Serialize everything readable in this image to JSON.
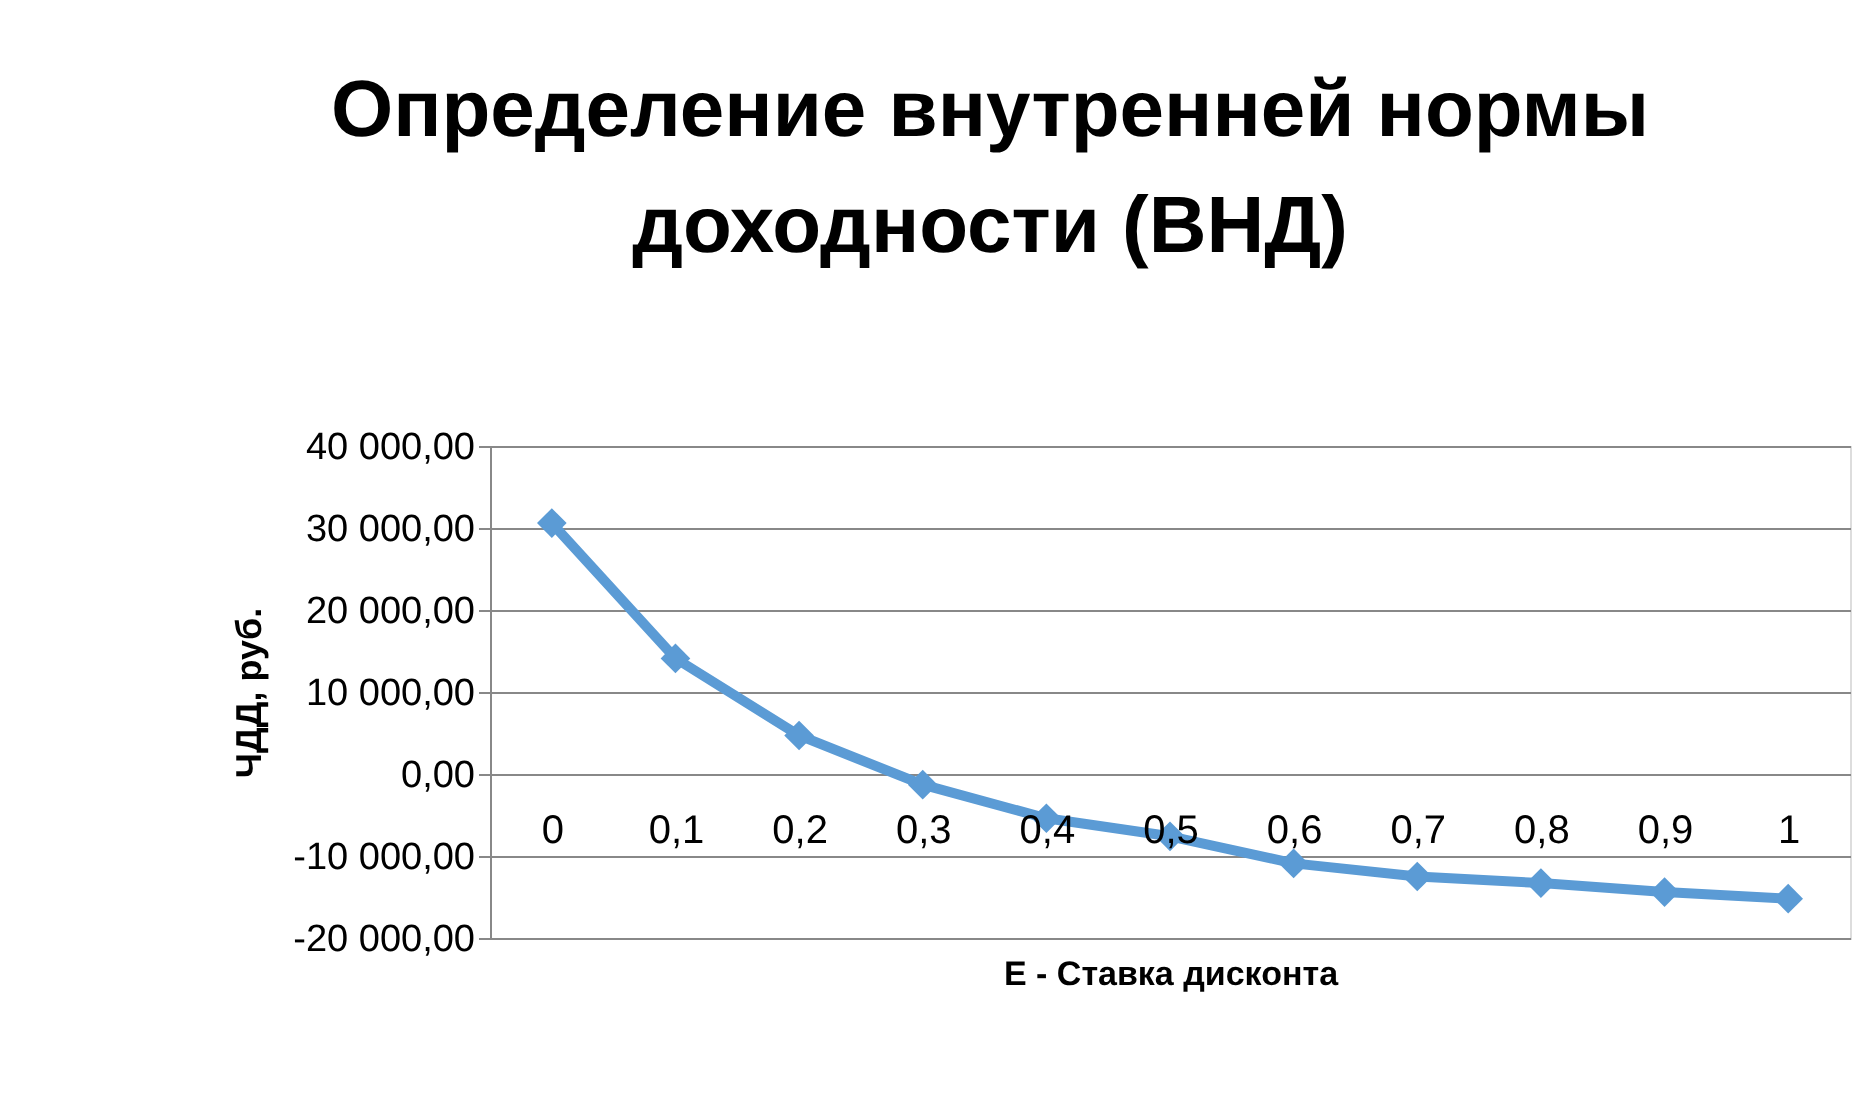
{
  "chart_data": {
    "type": "line",
    "title": "Определение внутренней нормы доходности (ВНД)",
    "xlabel": "E - Ставка дисконта",
    "ylabel": "ЧДД,  руб.",
    "categories": [
      "0",
      "0,1",
      "0,2",
      "0,3",
      "0,4",
      "0,5",
      "0,6",
      "0,7",
      "0,8",
      "0,9",
      "1"
    ],
    "series": [
      {
        "color": "#5b9bd5",
        "values": [
          30600,
          14100,
          4700,
          -1300,
          -5400,
          -7600,
          -10900,
          -12500,
          -13300,
          -14400,
          -15200
        ]
      }
    ],
    "ylim": [
      -20000,
      40000
    ],
    "yticks": [
      {
        "value": -20000,
        "label": "-20 000,00"
      },
      {
        "value": -10000,
        "label": "-10 000,00"
      },
      {
        "value": 0,
        "label": "0,00"
      },
      {
        "value": 10000,
        "label": "10 000,00"
      },
      {
        "value": 20000,
        "label": "20 000,00"
      },
      {
        "value": 30000,
        "label": "30 000,00"
      },
      {
        "value": 40000,
        "label": "40 000,00"
      }
    ],
    "grid": "y",
    "marker": "diamond",
    "line_style": "solid",
    "legend": false
  }
}
